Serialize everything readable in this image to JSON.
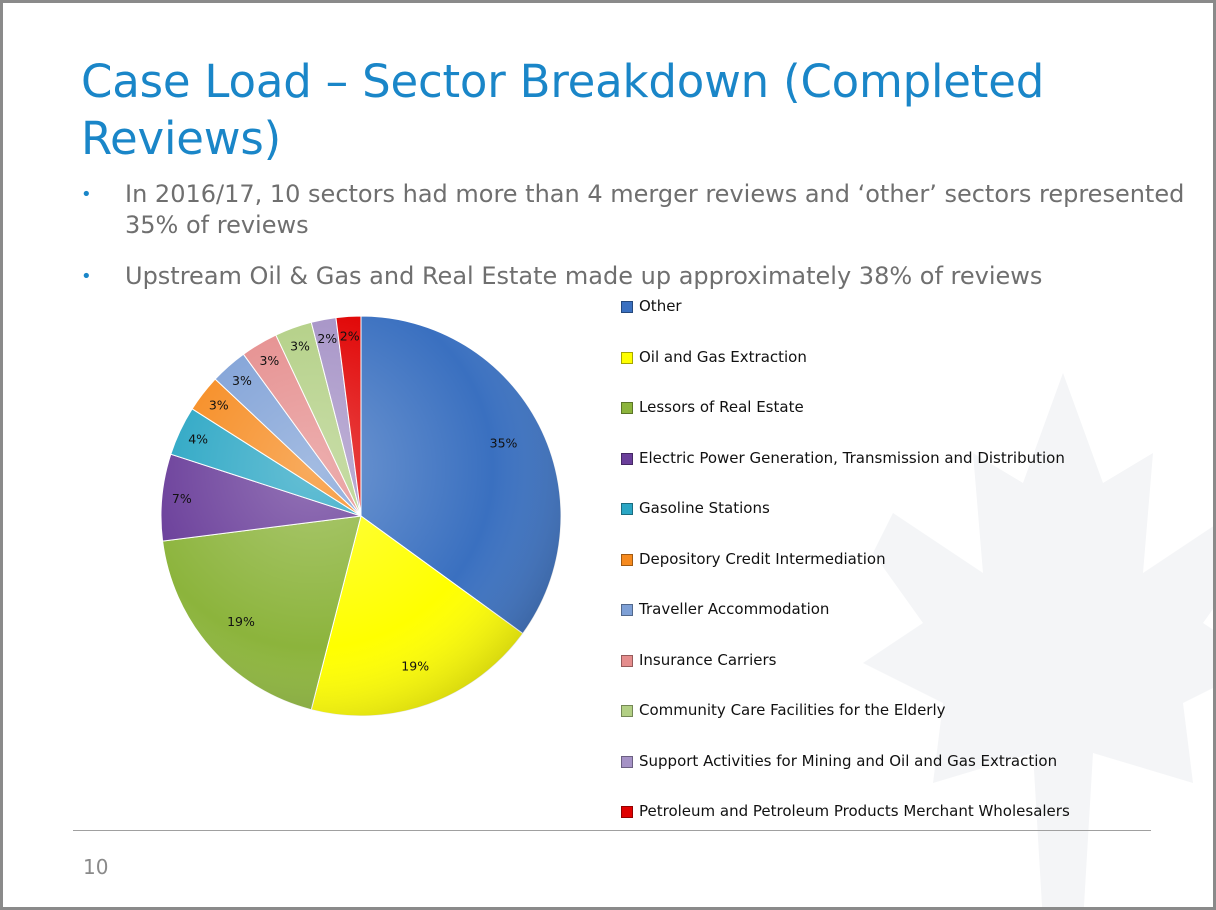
{
  "slide": {
    "title": "Case Load – Sector Breakdown (Completed Reviews)",
    "bullets": [
      "In 2016/17, 10 sectors had more than 4 merger reviews and ‘other’ sectors represented 35% of reviews",
      "Upstream Oil & Gas and Real Estate made up approximately 38% of reviews"
    ],
    "page_number": "10"
  },
  "chart_data": {
    "type": "pie",
    "title": "",
    "series": [
      {
        "name": "",
        "categories": [
          "Other",
          "Oil and Gas Extraction",
          "Lessors of Real Estate",
          "Electric Power Generation, Transmission and Distribution",
          "Gasoline Stations",
          "Depository Credit Intermediation",
          "Traveller Accommodation",
          "Insurance Carriers",
          "Community Care Facilities for the Elderly",
          "Support Activities for Mining and Oil and Gas Extraction",
          "Petroleum and Petroleum Products Merchant Wholesalers"
        ],
        "values": [
          35,
          19,
          19,
          7,
          4,
          3,
          3,
          3,
          3,
          2,
          2
        ],
        "labels": [
          "35%",
          "19%",
          "19%",
          "7%",
          "4%",
          "3%",
          "3%",
          "3%",
          "3%",
          "2%",
          "2%"
        ],
        "colors": [
          "#3a70c0",
          "#ffff00",
          "#8cb43c",
          "#6a3e9a",
          "#2aa6c4",
          "#f68a1e",
          "#7ea0d6",
          "#e58d8d",
          "#b2cf84",
          "#a592c6",
          "#e00000"
        ]
      }
    ],
    "legend_position": "right",
    "start": "top, clockwise"
  }
}
